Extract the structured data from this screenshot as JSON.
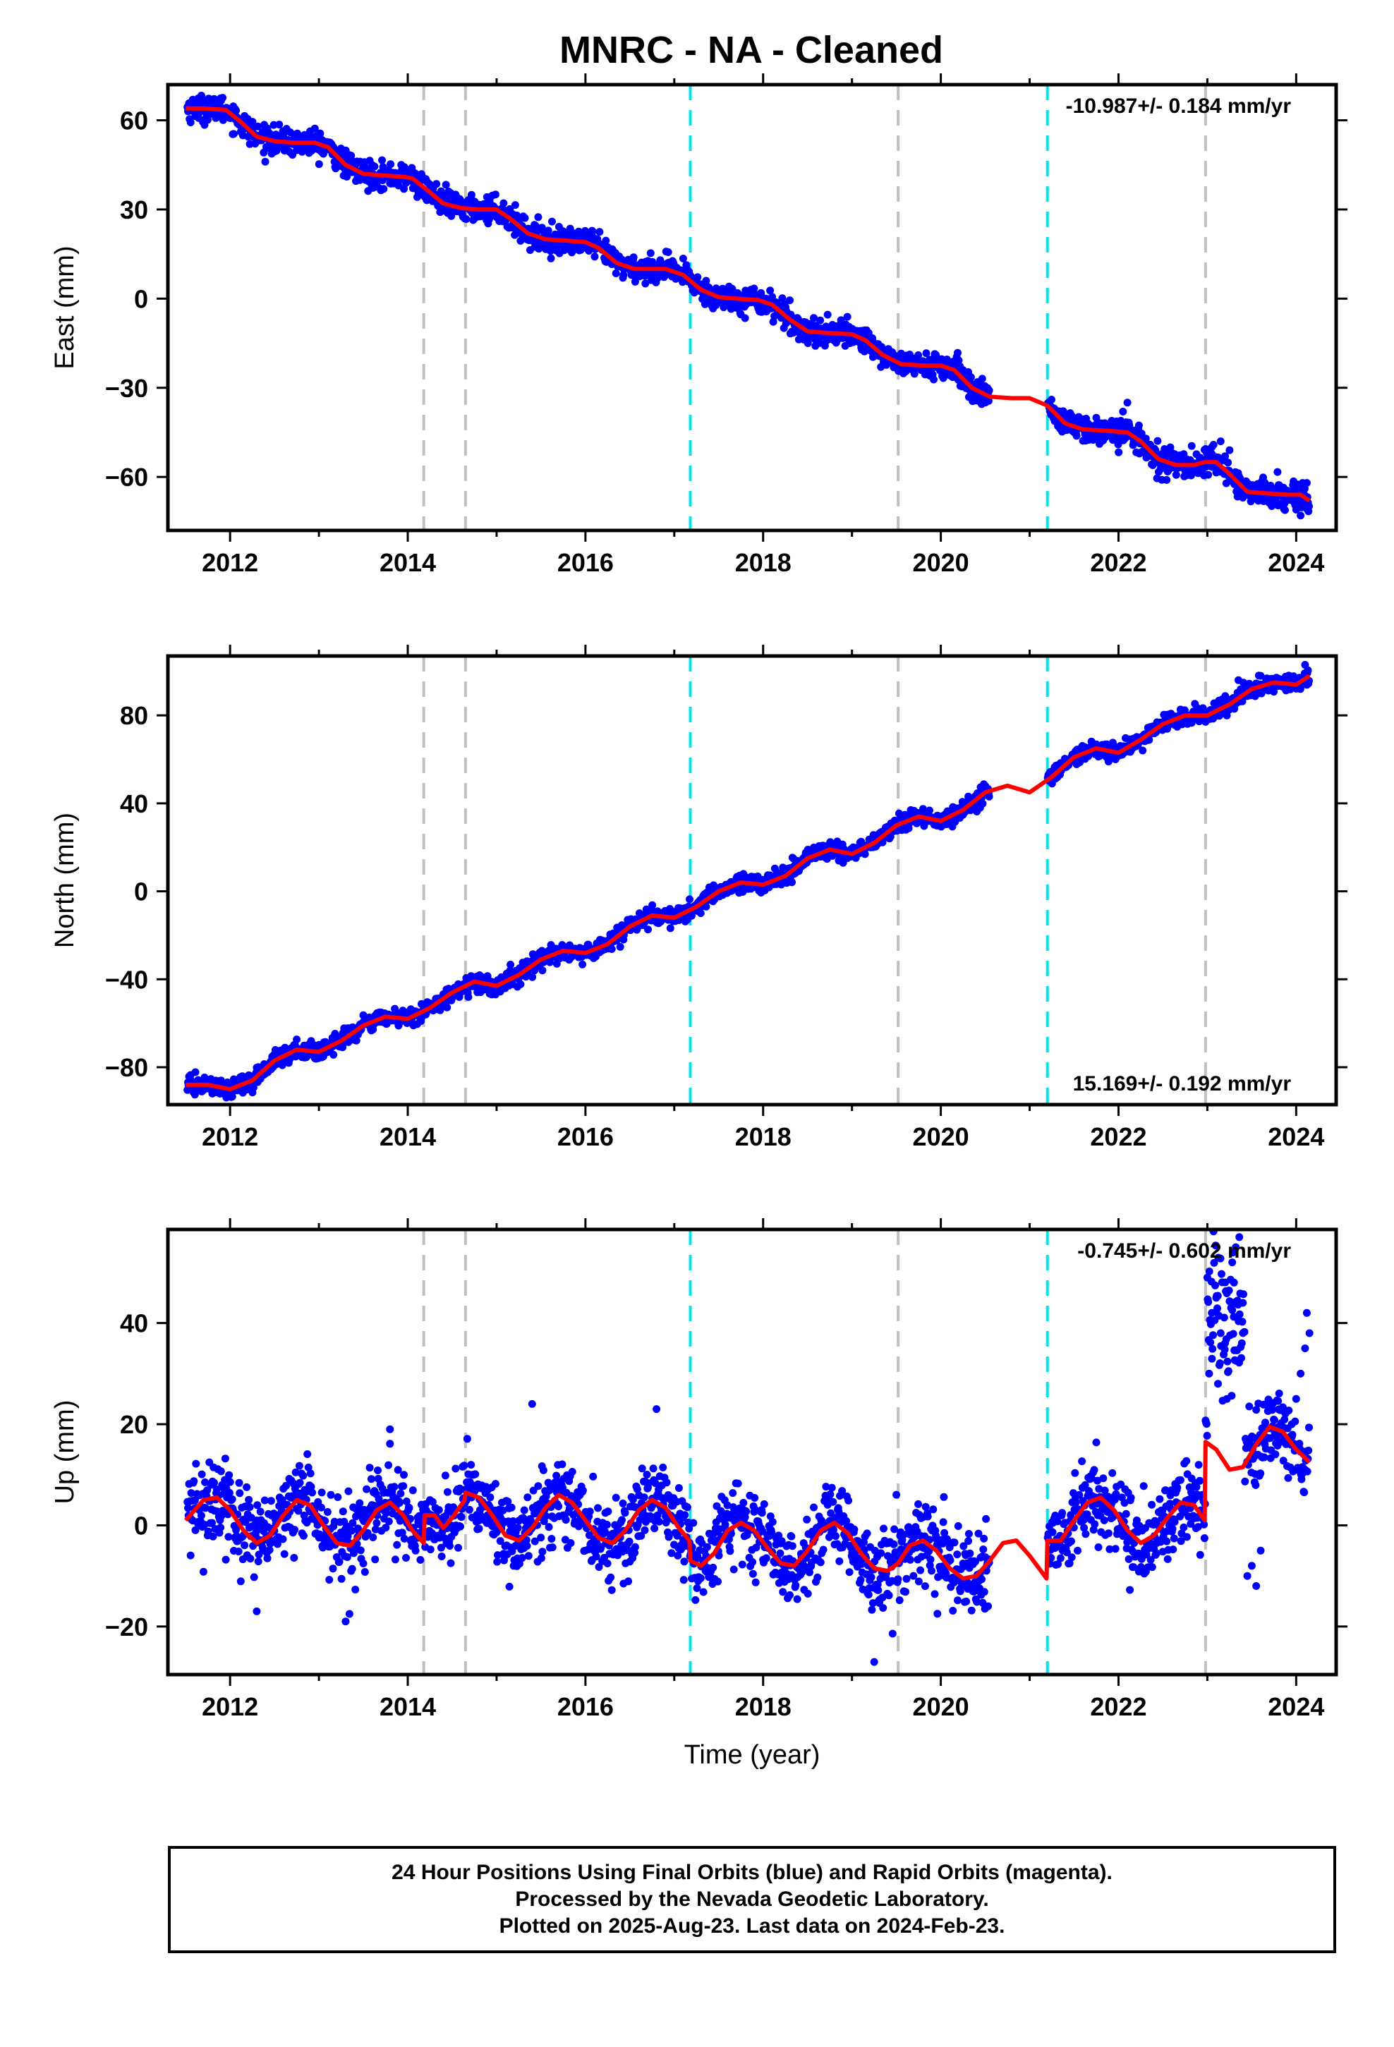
{
  "title": "MNRC  - NA - Cleaned",
  "x_axis_label": "Time (year)",
  "caption": {
    "line1": "24 Hour Positions Using Final Orbits (blue) and Rapid Orbits (magenta).",
    "line2": "Processed by the Nevada Geodetic Laboratory.",
    "line3": "Plotted on 2025-Aug-23. Last data on 2024-Feb-23."
  },
  "colors": {
    "data": "#0000ff",
    "model": "#ff0000",
    "equipment_change": "#c0c0c0",
    "earthquake": "#00e5ee"
  },
  "chart_data": [
    {
      "type": "scatter",
      "ylabel": "East (mm)",
      "rate_text": "-10.987+/- 0.184 mm/yr",
      "xlim": [
        2011.3,
        2024.45
      ],
      "ylim": [
        -78,
        72
      ],
      "xticks": [
        "2012",
        "2014",
        "2016",
        "2018",
        "2020",
        "2022",
        "2024"
      ],
      "yticks": [
        60,
        30,
        0,
        -30,
        -60
      ],
      "ytick_labels": [
        "60",
        "30",
        "0",
        "−30",
        "−60"
      ],
      "gray_lines": [
        2014.18,
        2014.65,
        2019.52,
        2022.98
      ],
      "cyan_lines": [
        2017.18,
        2021.2
      ],
      "gap": [
        2020.55,
        2021.2
      ],
      "model": [
        [
          2011.5,
          64
        ],
        [
          2011.7,
          64
        ],
        [
          2011.95,
          63.5
        ],
        [
          2012.1,
          60
        ],
        [
          2012.3,
          54.5
        ],
        [
          2012.5,
          53
        ],
        [
          2012.7,
          52.5
        ],
        [
          2012.95,
          52.5
        ],
        [
          2013.1,
          51
        ],
        [
          2013.3,
          45
        ],
        [
          2013.5,
          42
        ],
        [
          2013.7,
          41.5
        ],
        [
          2013.95,
          41
        ],
        [
          2014.05,
          40.5
        ],
        [
          2014.2,
          37
        ],
        [
          2014.4,
          32
        ],
        [
          2014.6,
          30.5
        ],
        [
          2014.8,
          30
        ],
        [
          2015.0,
          30
        ],
        [
          2015.15,
          27
        ],
        [
          2015.35,
          22
        ],
        [
          2015.55,
          20
        ],
        [
          2015.8,
          19.5
        ],
        [
          2016.0,
          19
        ],
        [
          2016.15,
          17
        ],
        [
          2016.35,
          12
        ],
        [
          2016.55,
          10
        ],
        [
          2016.9,
          10
        ],
        [
          2017.1,
          8
        ],
        [
          2017.3,
          3
        ],
        [
          2017.5,
          0.5
        ],
        [
          2017.7,
          0
        ],
        [
          2017.95,
          -0.5
        ],
        [
          2018.1,
          -2
        ],
        [
          2018.3,
          -7
        ],
        [
          2018.5,
          -11
        ],
        [
          2018.7,
          -11.5
        ],
        [
          2019.0,
          -12
        ],
        [
          2019.15,
          -14
        ],
        [
          2019.35,
          -19
        ],
        [
          2019.55,
          -22
        ],
        [
          2019.8,
          -22.5
        ],
        [
          2020.0,
          -22.5
        ],
        [
          2020.15,
          -24
        ],
        [
          2020.35,
          -30
        ],
        [
          2020.55,
          -33
        ],
        [
          2020.8,
          -33.5
        ],
        [
          2021.0,
          -33.5
        ],
        [
          2021.2,
          -36
        ],
        [
          2021.4,
          -42
        ],
        [
          2021.6,
          -44
        ],
        [
          2021.9,
          -44.5
        ],
        [
          2022.1,
          -45
        ],
        [
          2022.25,
          -48
        ],
        [
          2022.45,
          -54
        ],
        [
          2022.65,
          -56
        ],
        [
          2022.85,
          -56
        ],
        [
          2022.97,
          -55
        ],
        [
          2023.1,
          -55
        ],
        [
          2023.25,
          -59
        ],
        [
          2023.45,
          -65
        ],
        [
          2023.65,
          -65.5
        ],
        [
          2023.9,
          -66
        ],
        [
          2024.05,
          -66
        ],
        [
          2024.15,
          -68
        ]
      ],
      "noise": 2.2,
      "outliers": [
        [
          2023.05,
          -50
        ],
        [
          2023.15,
          -48
        ],
        [
          2023.2,
          -53
        ],
        [
          2023.25,
          -51
        ],
        [
          2024.0,
          -71
        ],
        [
          2024.05,
          -73
        ],
        [
          2024.12,
          -62
        ],
        [
          2022.05,
          -38
        ],
        [
          2022.1,
          -35
        ]
      ]
    },
    {
      "type": "scatter",
      "ylabel": "North (mm)",
      "rate_text": "15.169+/- 0.192 mm/yr",
      "xlim": [
        2011.3,
        2024.45
      ],
      "ylim": [
        -97,
        107
      ],
      "xticks": [
        "2012",
        "2014",
        "2016",
        "2018",
        "2020",
        "2022",
        "2024"
      ],
      "yticks": [
        80,
        40,
        0,
        -40,
        -80
      ],
      "ytick_labels": [
        "80",
        "40",
        "0",
        "−40",
        "−80"
      ],
      "gray_lines": [
        2014.18,
        2014.65,
        2019.52,
        2022.98
      ],
      "cyan_lines": [
        2017.18,
        2021.2
      ],
      "gap": [
        2020.55,
        2021.2
      ],
      "model": [
        [
          2011.5,
          -88
        ],
        [
          2011.75,
          -88
        ],
        [
          2012.0,
          -90
        ],
        [
          2012.25,
          -86
        ],
        [
          2012.5,
          -77
        ],
        [
          2012.75,
          -72
        ],
        [
          2013.0,
          -73
        ],
        [
          2013.25,
          -68
        ],
        [
          2013.5,
          -61
        ],
        [
          2013.75,
          -57
        ],
        [
          2014.0,
          -58
        ],
        [
          2014.25,
          -53
        ],
        [
          2014.5,
          -46
        ],
        [
          2014.75,
          -41
        ],
        [
          2015.0,
          -43
        ],
        [
          2015.25,
          -38
        ],
        [
          2015.5,
          -31
        ],
        [
          2015.75,
          -27
        ],
        [
          2016.0,
          -28
        ],
        [
          2016.25,
          -24
        ],
        [
          2016.5,
          -16
        ],
        [
          2016.75,
          -11
        ],
        [
          2017.0,
          -12
        ],
        [
          2017.25,
          -7
        ],
        [
          2017.5,
          0
        ],
        [
          2017.75,
          4
        ],
        [
          2018.0,
          3
        ],
        [
          2018.25,
          7
        ],
        [
          2018.5,
          15
        ],
        [
          2018.75,
          19
        ],
        [
          2019.0,
          17
        ],
        [
          2019.25,
          22
        ],
        [
          2019.5,
          30
        ],
        [
          2019.75,
          34
        ],
        [
          2020.0,
          32
        ],
        [
          2020.25,
          37
        ],
        [
          2020.5,
          45
        ],
        [
          2020.75,
          48
        ],
        [
          2021.0,
          45
        ],
        [
          2021.25,
          52
        ],
        [
          2021.5,
          61
        ],
        [
          2021.75,
          65
        ],
        [
          2022.0,
          63
        ],
        [
          2022.25,
          69
        ],
        [
          2022.5,
          76
        ],
        [
          2022.75,
          80
        ],
        [
          2023.0,
          80
        ],
        [
          2023.25,
          85
        ],
        [
          2023.5,
          92
        ],
        [
          2023.75,
          95
        ],
        [
          2024.0,
          94
        ],
        [
          2024.15,
          98
        ]
      ],
      "noise": 2.0,
      "outliers": [
        [
          2024.1,
          103
        ],
        [
          2023.35,
          96
        ],
        [
          2011.8,
          -92
        ],
        [
          2023.6,
          98
        ]
      ]
    },
    {
      "type": "scatter",
      "ylabel": "Up (mm)",
      "rate_text": "-0.745+/- 0.602 mm/yr",
      "xlim": [
        2011.3,
        2024.45
      ],
      "ylim": [
        -29.5,
        58.5
      ],
      "xticks": [
        "2012",
        "2014",
        "2016",
        "2018",
        "2020",
        "2022",
        "2024"
      ],
      "yticks": [
        40,
        20,
        0,
        -20
      ],
      "ytick_labels": [
        "40",
        "20",
        "0",
        "−20"
      ],
      "gray_lines": [
        2014.18,
        2014.65,
        2019.52,
        2022.98
      ],
      "cyan_lines": [
        2017.18,
        2021.2
      ],
      "gap": [
        2020.55,
        2021.2
      ],
      "model": [
        [
          2011.5,
          1
        ],
        [
          2011.7,
          5
        ],
        [
          2011.85,
          5.5
        ],
        [
          2012.0,
          3
        ],
        [
          2012.15,
          -1
        ],
        [
          2012.3,
          -3.5
        ],
        [
          2012.45,
          -2
        ],
        [
          2012.6,
          2
        ],
        [
          2012.75,
          5
        ],
        [
          2012.9,
          4
        ],
        [
          2013.05,
          0
        ],
        [
          2013.2,
          -3.5
        ],
        [
          2013.35,
          -4
        ],
        [
          2013.5,
          -1
        ],
        [
          2013.65,
          3
        ],
        [
          2013.8,
          4.5
        ],
        [
          2013.95,
          2
        ],
        [
          2014.05,
          -1
        ],
        [
          2014.18,
          -3.5
        ],
        [
          2014.19,
          2
        ],
        [
          2014.3,
          2
        ],
        [
          2014.4,
          -0.5
        ],
        [
          2014.5,
          1.5
        ],
        [
          2014.64,
          5
        ],
        [
          2014.65,
          6.5
        ],
        [
          2014.8,
          5.5
        ],
        [
          2014.95,
          2
        ],
        [
          2015.1,
          -2
        ],
        [
          2015.25,
          -3
        ],
        [
          2015.4,
          -0.5
        ],
        [
          2015.55,
          3.5
        ],
        [
          2015.7,
          6
        ],
        [
          2015.85,
          4.5
        ],
        [
          2016.0,
          1
        ],
        [
          2016.15,
          -2.5
        ],
        [
          2016.3,
          -3.5
        ],
        [
          2016.45,
          -1
        ],
        [
          2016.6,
          3
        ],
        [
          2016.75,
          5
        ],
        [
          2016.9,
          3.5
        ],
        [
          2017.05,
          -0.5
        ],
        [
          2017.17,
          -3
        ],
        [
          2017.18,
          -7
        ],
        [
          2017.3,
          -8
        ],
        [
          2017.45,
          -5.5
        ],
        [
          2017.6,
          -1
        ],
        [
          2017.75,
          0.5
        ],
        [
          2017.9,
          -1
        ],
        [
          2018.05,
          -4.5
        ],
        [
          2018.2,
          -7.5
        ],
        [
          2018.35,
          -8
        ],
        [
          2018.5,
          -5
        ],
        [
          2018.65,
          -1
        ],
        [
          2018.8,
          0.5
        ],
        [
          2018.95,
          -1.5
        ],
        [
          2019.1,
          -5.5
        ],
        [
          2019.25,
          -8.5
        ],
        [
          2019.4,
          -9
        ],
        [
          2019.52,
          -7.5
        ],
        [
          2019.65,
          -4
        ],
        [
          2019.8,
          -3
        ],
        [
          2019.95,
          -5
        ],
        [
          2020.1,
          -8.5
        ],
        [
          2020.25,
          -10.5
        ],
        [
          2020.4,
          -10
        ],
        [
          2020.55,
          -7
        ],
        [
          2020.7,
          -3.5
        ],
        [
          2020.85,
          -3
        ],
        [
          2021.0,
          -6
        ],
        [
          2021.19,
          -10.5
        ],
        [
          2021.2,
          -3
        ],
        [
          2021.35,
          -3
        ],
        [
          2021.5,
          1
        ],
        [
          2021.65,
          4.5
        ],
        [
          2021.8,
          5.5
        ],
        [
          2021.95,
          3
        ],
        [
          2022.1,
          -1
        ],
        [
          2022.25,
          -3.5
        ],
        [
          2022.4,
          -2
        ],
        [
          2022.55,
          1.5
        ],
        [
          2022.7,
          4.5
        ],
        [
          2022.85,
          4
        ],
        [
          2022.97,
          1
        ],
        [
          2022.98,
          16.5
        ],
        [
          2023.1,
          15
        ],
        [
          2023.25,
          11
        ],
        [
          2023.4,
          11.5
        ],
        [
          2023.55,
          16
        ],
        [
          2023.7,
          19.5
        ],
        [
          2023.85,
          18.5
        ],
        [
          2024.0,
          15
        ],
        [
          2024.15,
          12.5
        ]
      ],
      "noise": 4.0,
      "outliers": [
        [
          2023.0,
          49
        ],
        [
          2023.05,
          42
        ],
        [
          2023.1,
          45
        ],
        [
          2023.15,
          38
        ],
        [
          2023.2,
          36
        ],
        [
          2023.28,
          52
        ],
        [
          2023.32,
          55
        ],
        [
          2023.36,
          57
        ],
        [
          2023.3,
          48
        ],
        [
          2023.4,
          44
        ],
        [
          2023.02,
          30
        ],
        [
          2023.12,
          28
        ],
        [
          2023.22,
          25
        ],
        [
          2023.45,
          -10
        ],
        [
          2023.5,
          -8
        ],
        [
          2023.55,
          -12
        ],
        [
          2023.6,
          -5
        ],
        [
          2024.0,
          25
        ],
        [
          2024.05,
          30
        ],
        [
          2024.1,
          35
        ],
        [
          2024.12,
          42
        ],
        [
          2024.15,
          38
        ],
        [
          2023.95,
          20
        ],
        [
          2016.8,
          23
        ],
        [
          2015.4,
          24
        ],
        [
          2013.8,
          19
        ],
        [
          2019.25,
          -27
        ],
        [
          2012.3,
          -17
        ],
        [
          2013.3,
          -19
        ]
      ]
    }
  ]
}
